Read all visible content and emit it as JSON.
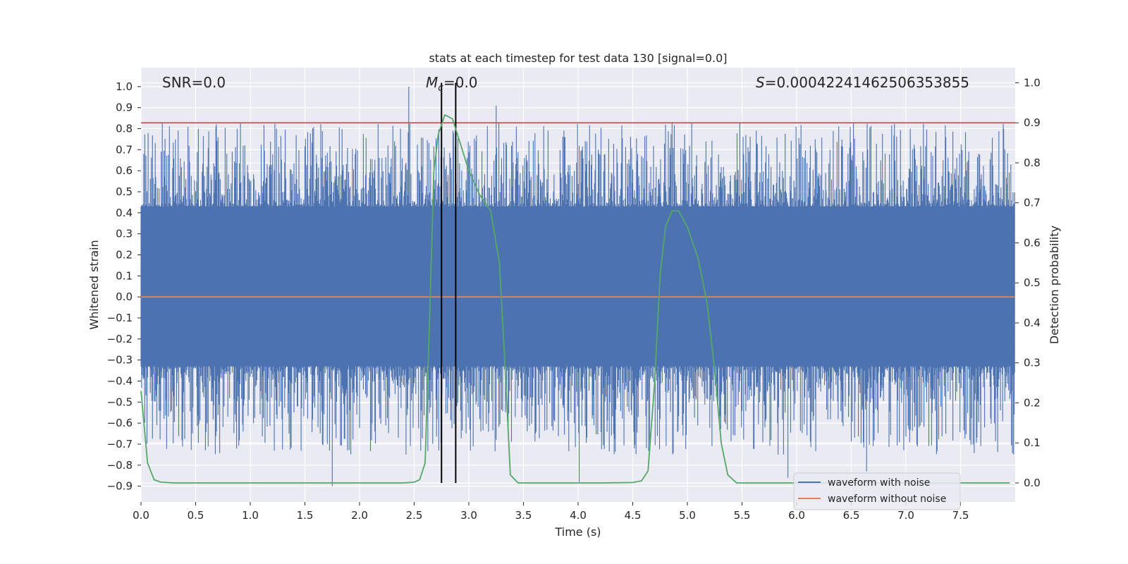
{
  "chart_data": {
    "type": "line",
    "title": "stats at each timestep for test data 130 [signal=0.0]",
    "xlabel": "Time (s)",
    "ylabel": "Whitened strain",
    "y2label": "Detection probability",
    "xlim": [
      0.0,
      8.0
    ],
    "ylim": [
      -0.975,
      1.09
    ],
    "y2lim": [
      -0.0476,
      1.0378
    ],
    "xticks": [
      "0.0",
      "0.5",
      "1.0",
      "1.5",
      "2.0",
      "2.5",
      "3.0",
      "3.5",
      "4.0",
      "4.5",
      "5.0",
      "5.5",
      "6.0",
      "6.5",
      "7.0",
      "7.5"
    ],
    "yticks": [
      "1.0",
      "0.9",
      "0.8",
      "0.7",
      "0.6",
      "0.5",
      "0.4",
      "0.3",
      "0.2",
      "0.1",
      "0.0",
      "−0.1",
      "−0.2",
      "−0.3",
      "−0.4",
      "−0.5",
      "−0.6",
      "−0.7",
      "−0.8",
      "−0.9"
    ],
    "y2ticks": [
      "1.0",
      "0.9",
      "0.8",
      "0.7",
      "0.6",
      "0.5",
      "0.4",
      "0.3",
      "0.2",
      "0.1",
      "0.0"
    ],
    "annotations": {
      "snr": "SNR=0.0",
      "mc_symbol": "M",
      "mc_sub": "c",
      "mc_value": "=0.0",
      "s_symbol": "S",
      "s_value": "=0.00042241462506353855"
    },
    "threshold_probability": 0.9,
    "vertical_markers_s": [
      2.75,
      2.88
    ],
    "noise_envelope": {
      "seed": 130,
      "samples": 1600,
      "core_upper": 0.43,
      "core_lower": -0.33,
      "spikes": [
        {
          "x": 2.45,
          "y": 1.0
        },
        {
          "x": 3.25,
          "y": 0.91
        },
        {
          "x": 6.52,
          "y": 0.83
        },
        {
          "x": 0.88,
          "y": 0.8
        },
        {
          "x": 1.75,
          "y": -0.9
        },
        {
          "x": 4.01,
          "y": -0.88
        },
        {
          "x": 5.92,
          "y": -0.86
        },
        {
          "x": 6.64,
          "y": -0.83
        },
        {
          "x": 2.71,
          "y": -0.58
        }
      ]
    },
    "series": [
      {
        "name": "waveform with noise",
        "color": "#4c72b0",
        "axis": "left"
      },
      {
        "name": "waveform without noise",
        "color": "#dd8452",
        "axis": "left",
        "constant": 0.0
      },
      {
        "name": "detection probability",
        "color": "#55a868",
        "axis": "right",
        "x": [
          0.0,
          0.06,
          0.12,
          0.18,
          0.3,
          0.6,
          1.0,
          1.5,
          2.0,
          2.4,
          2.5,
          2.55,
          2.6,
          2.64,
          2.68,
          2.72,
          2.78,
          2.85,
          2.92,
          3.0,
          3.1,
          3.2,
          3.28,
          3.33,
          3.38,
          3.45,
          3.5,
          3.8,
          4.2,
          4.5,
          4.58,
          4.64,
          4.7,
          4.75,
          4.8,
          4.86,
          4.92,
          5.0,
          5.1,
          5.18,
          5.25,
          5.31,
          5.37,
          5.45,
          5.6,
          6.0,
          7.0,
          7.95
        ],
        "y": [
          0.23,
          0.05,
          0.008,
          0.002,
          0.0,
          0.0,
          0.0,
          0.0,
          0.0,
          0.0,
          0.002,
          0.008,
          0.05,
          0.4,
          0.78,
          0.87,
          0.92,
          0.91,
          0.85,
          0.78,
          0.72,
          0.68,
          0.55,
          0.3,
          0.02,
          0.0,
          0.0,
          0.0,
          0.0,
          0.001,
          0.005,
          0.03,
          0.25,
          0.52,
          0.64,
          0.68,
          0.68,
          0.64,
          0.56,
          0.45,
          0.28,
          0.1,
          0.02,
          0.0,
          0.0,
          0.0,
          0.0,
          0.0
        ]
      },
      {
        "name": "threshold",
        "color": "#c44e52",
        "axis": "right",
        "constant": 0.9
      }
    ],
    "legend": {
      "position": "lower-right",
      "entries": [
        {
          "label": "waveform with noise",
          "color": "#4c72b0"
        },
        {
          "label": "waveform without noise",
          "color": "#dd8452"
        }
      ]
    }
  }
}
